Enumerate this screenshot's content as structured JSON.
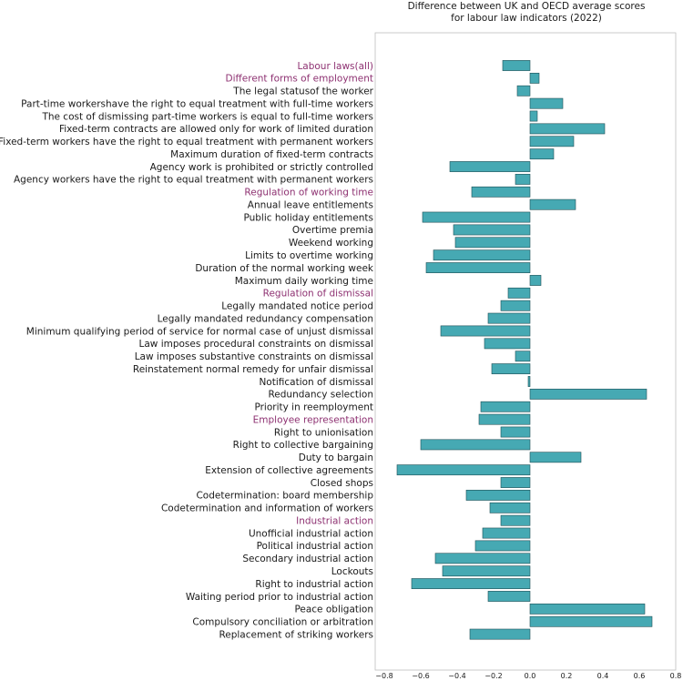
{
  "chart_data": {
    "type": "bar",
    "orientation": "horizontal",
    "title": [
      "Difference between UK and OECD average scores",
      "for labour law indicators (2022)"
    ],
    "xlabel": "",
    "ylabel": "",
    "xlim": [
      -0.85,
      0.8
    ],
    "xticks": [
      -0.8,
      -0.6,
      -0.4,
      -0.2,
      0.0,
      0.2,
      0.4,
      0.6,
      0.8
    ],
    "xtick_labels": [
      "−0.8",
      "−0.6",
      "−0.4",
      "−0.2",
      "0.0",
      "0.2",
      "0.4",
      "0.6",
      "0.8"
    ],
    "grid": false,
    "colors": {
      "bar": "#46a9b3",
      "bar_edge": "#1f4f55",
      "category_label": "#8e3272",
      "label": "#1a1a1a"
    },
    "categories": [
      {
        "label": "Labour laws(all)",
        "value": -0.15,
        "category": true
      },
      {
        "label": "Different forms of employment",
        "value": 0.05,
        "category": true
      },
      {
        "label": "The legal statusof the worker",
        "value": -0.07,
        "category": false
      },
      {
        "label": "Part-time workershave the right to equal treatment with full-time workers",
        "value": 0.18,
        "category": false
      },
      {
        "label": "The cost of dismissing part-time workers is equal to full-time workers",
        "value": 0.04,
        "category": false
      },
      {
        "label": "Fixed-term contracts are allowed only for work of limited duration",
        "value": 0.41,
        "category": false
      },
      {
        "label": "Fixed-term workers have the right to equal treatment with permanent workers",
        "value": 0.24,
        "category": false
      },
      {
        "label": "Maximum duration of fixed-term contracts",
        "value": 0.13,
        "category": false
      },
      {
        "label": "Agency work is prohibited or strictly controlled",
        "value": -0.44,
        "category": false
      },
      {
        "label": "Agency workers have the right to equal treatment with permanent workers",
        "value": -0.08,
        "category": false
      },
      {
        "label": "Regulation of working time",
        "value": -0.32,
        "category": true
      },
      {
        "label": "Annual leave entitlements",
        "value": 0.25,
        "category": false
      },
      {
        "label": "Public holiday entitlements",
        "value": -0.59,
        "category": false
      },
      {
        "label": "Overtime premia",
        "value": -0.42,
        "category": false
      },
      {
        "label": "Weekend working",
        "value": -0.41,
        "category": false
      },
      {
        "label": "Limits to overtime working",
        "value": -0.53,
        "category": false
      },
      {
        "label": "Duration of the normal working week",
        "value": -0.57,
        "category": false
      },
      {
        "label": "Maximum daily working time",
        "value": 0.06,
        "category": false
      },
      {
        "label": "Regulation of dismissal",
        "value": -0.12,
        "category": true
      },
      {
        "label": "Legally mandated notice period",
        "value": -0.16,
        "category": false
      },
      {
        "label": "Legally mandated redundancy compensation",
        "value": -0.23,
        "category": false
      },
      {
        "label": "Minimum qualifying period of service for normal case of unjust dismissal",
        "value": -0.49,
        "category": false
      },
      {
        "label": "Law imposes procedural constraints on dismissal",
        "value": -0.25,
        "category": false
      },
      {
        "label": "Law imposes substantive constraints on dismissal",
        "value": -0.08,
        "category": false
      },
      {
        "label": "Reinstatement normal remedy for unfair dismissal",
        "value": -0.21,
        "category": false
      },
      {
        "label": "Notification of dismissal",
        "value": -0.01,
        "category": false
      },
      {
        "label": "Redundancy selection",
        "value": 0.64,
        "category": false
      },
      {
        "label": "Priority in reemployment",
        "value": -0.27,
        "category": false
      },
      {
        "label": "Employee representation",
        "value": -0.28,
        "category": true
      },
      {
        "label": "Right to unionisation",
        "value": -0.16,
        "category": false
      },
      {
        "label": "Right to collective bargaining",
        "value": -0.6,
        "category": false
      },
      {
        "label": "Duty to bargain",
        "value": 0.28,
        "category": false
      },
      {
        "label": "Extension of collective agreements",
        "value": -0.73,
        "category": false
      },
      {
        "label": "Closed shops",
        "value": -0.16,
        "category": false
      },
      {
        "label": "Codetermination: board membership",
        "value": -0.35,
        "category": false
      },
      {
        "label": "Codetermination and information of workers",
        "value": -0.22,
        "category": false
      },
      {
        "label": "Industrial action",
        "value": -0.16,
        "category": true
      },
      {
        "label": "Unofficial industrial action",
        "value": -0.26,
        "category": false
      },
      {
        "label": "Political industrial action",
        "value": -0.3,
        "category": false
      },
      {
        "label": "Secondary industrial action",
        "value": -0.52,
        "category": false
      },
      {
        "label": "Lockouts",
        "value": -0.48,
        "category": false
      },
      {
        "label": "Right to industrial action",
        "value": -0.65,
        "category": false
      },
      {
        "label": "Waiting period prior to industrial action",
        "value": -0.23,
        "category": false
      },
      {
        "label": "Peace obligation",
        "value": 0.63,
        "category": false
      },
      {
        "label": "Compulsory conciliation or arbitration",
        "value": 0.67,
        "category": false
      },
      {
        "label": "Replacement of striking workers",
        "value": -0.33,
        "category": false
      }
    ]
  }
}
